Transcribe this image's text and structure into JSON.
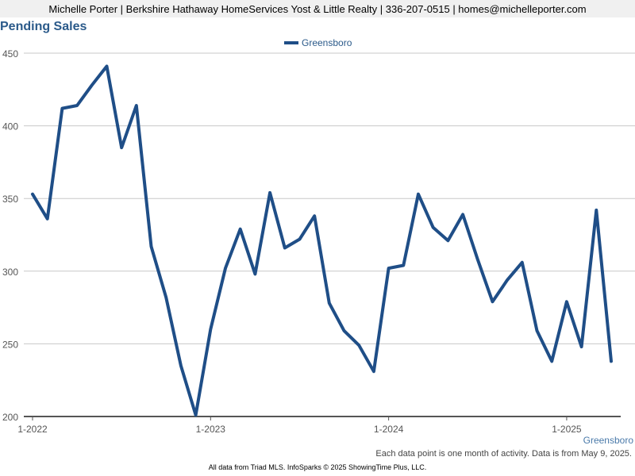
{
  "header": {
    "text": "Michelle Porter | Berkshire Hathaway HomeServices Yost & Little Realty | 336-207-0515 | homes@michelleporter.com"
  },
  "chart_data": {
    "type": "line",
    "title": "Pending Sales",
    "xlabel": "",
    "ylabel": "",
    "ylim": [
      200,
      450
    ],
    "yticks": [
      200,
      250,
      300,
      350,
      400,
      450
    ],
    "xticks": [
      "1-2022",
      "1-2023",
      "1-2024",
      "1-2025"
    ],
    "grid": true,
    "legend_position": "top",
    "series": [
      {
        "name": "Greensboro",
        "color": "#1f4e87",
        "x": [
          "2022-01",
          "2022-02",
          "2022-03",
          "2022-04",
          "2022-05",
          "2022-06",
          "2022-07",
          "2022-08",
          "2022-09",
          "2022-10",
          "2022-11",
          "2022-12",
          "2023-01",
          "2023-02",
          "2023-03",
          "2023-04",
          "2023-05",
          "2023-06",
          "2023-07",
          "2023-08",
          "2023-09",
          "2023-10",
          "2023-11",
          "2023-12",
          "2024-01",
          "2024-02",
          "2024-03",
          "2024-04",
          "2024-05",
          "2024-06",
          "2024-07",
          "2024-08",
          "2024-09",
          "2024-10",
          "2024-11",
          "2024-12",
          "2025-01",
          "2025-02",
          "2025-03",
          "2025-04"
        ],
        "values": [
          353,
          336,
          412,
          414,
          428,
          441,
          385,
          414,
          317,
          282,
          235,
          201,
          260,
          302,
          329,
          298,
          354,
          316,
          322,
          338,
          278,
          259,
          249,
          231,
          302,
          304,
          353,
          330,
          321,
          339,
          308,
          279,
          294,
          306,
          259,
          238,
          279,
          248,
          342,
          238
        ]
      }
    ]
  },
  "legend": {
    "label": "Greensboro"
  },
  "series_label": "Greensboro",
  "note": "Each data point is one month of activity. Data is from May 9, 2025.",
  "footer": "All data from Triad MLS. InfoSparks © 2025 ShowingTime Plus, LLC."
}
